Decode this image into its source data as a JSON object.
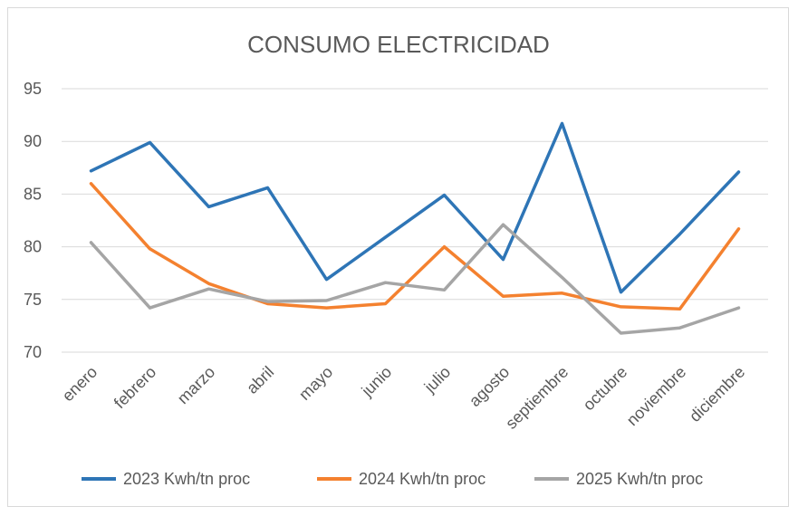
{
  "chart_data": {
    "type": "line",
    "title": "CONSUMO ELECTRICIDAD",
    "categories": [
      "enero",
      "febrero",
      "marzo",
      "abril",
      "mayo",
      "junio",
      "julio",
      "agosto",
      "septiembre",
      "octubre",
      "noviembre",
      "diciembre"
    ],
    "ylim": [
      70,
      95
    ],
    "yticks": [
      70,
      75,
      80,
      85,
      90,
      95
    ],
    "grid": true,
    "legend_position": "bottom",
    "series": [
      {
        "name": "2023 Kwh/tn proc",
        "color": "#2E75B6",
        "values": [
          87.2,
          89.9,
          83.8,
          85.6,
          76.9,
          80.9,
          84.9,
          78.8,
          91.7,
          75.7,
          81.2,
          87.1
        ]
      },
      {
        "name": "2024 Kwh/tn proc",
        "color": "#F4812F",
        "values": [
          86.0,
          79.8,
          76.5,
          74.6,
          74.2,
          74.6,
          80.0,
          75.3,
          75.6,
          74.3,
          74.1,
          81.7
        ]
      },
      {
        "name": "2025 Kwh/tn proc",
        "color": "#A5A5A5",
        "values": [
          80.4,
          74.2,
          76.0,
          74.8,
          74.9,
          76.6,
          75.9,
          82.1,
          77.1,
          71.8,
          72.3,
          74.2
        ]
      }
    ]
  }
}
